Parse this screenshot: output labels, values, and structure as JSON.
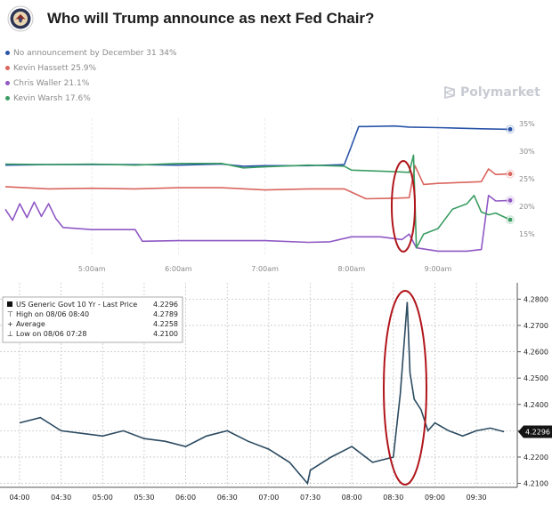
{
  "header": {
    "title": "Who will Trump announce as next Fed Chair?",
    "brand": "Polymarket"
  },
  "colors": {
    "none": "#2a54a8",
    "hassett": "#d9655e",
    "waller": "#8f58c4",
    "warsh": "#3a9d62",
    "bond_line": "#2b4a60",
    "annotation": "#b0151b"
  },
  "chart_data": [
    {
      "type": "line",
      "title": "Who will Trump announce as next Fed Chair?",
      "x_ticks": [
        "5:00am",
        "6:00am",
        "7:00am",
        "8:00am",
        "9:00am"
      ],
      "y_ticks": [
        "35%",
        "30%",
        "25%",
        "20%",
        "15%"
      ],
      "ylim": [
        11,
        36
      ],
      "grid": "vertical",
      "legend_position": "top-left",
      "series": [
        {
          "name": "No announcement by December 31",
          "label": "No announcement by December 31 34%",
          "color": "#2a54a8",
          "end_label": "",
          "x": [
            "04:00",
            "04:30",
            "05:00",
            "05:30",
            "06:00",
            "06:30",
            "06:45",
            "07:00",
            "07:30",
            "07:55",
            "08:00",
            "08:05",
            "08:10",
            "08:30",
            "08:40",
            "09:00",
            "09:30",
            "09:50"
          ],
          "y": [
            27.5,
            27.6,
            27.6,
            27.6,
            27.5,
            27.7,
            27.3,
            27.4,
            27.4,
            27.6,
            31.0,
            34.5,
            34.5,
            34.6,
            34.4,
            34.3,
            34.1,
            34.0
          ]
        },
        {
          "name": "Kevin Hassett",
          "label": "Kevin Hassett 25.9%",
          "color": "#d9655e",
          "x": [
            "04:00",
            "04:30",
            "05:00",
            "05:30",
            "06:00",
            "06:30",
            "07:00",
            "07:30",
            "07:55",
            "08:10",
            "08:30",
            "08:40",
            "08:44",
            "08:50",
            "09:00",
            "09:30",
            "09:35",
            "09:40",
            "09:50"
          ],
          "y": [
            23.6,
            23.2,
            23.3,
            23.2,
            23.4,
            23.4,
            23.0,
            23.2,
            23.2,
            21.4,
            21.5,
            21.6,
            27.4,
            24.0,
            24.2,
            24.5,
            26.8,
            25.8,
            25.9
          ]
        },
        {
          "name": "Chris Waller",
          "label": "Chris Waller 21.1%",
          "color": "#8f58c4",
          "x": [
            "04:00",
            "04:05",
            "04:10",
            "04:15",
            "04:20",
            "04:25",
            "04:30",
            "04:35",
            "04:40",
            "05:00",
            "05:30",
            "05:35",
            "06:00",
            "06:30",
            "07:00",
            "07:30",
            "07:45",
            "08:00",
            "08:20",
            "08:35",
            "08:40",
            "08:45",
            "09:00",
            "09:20",
            "09:30",
            "09:35",
            "09:40",
            "09:50"
          ],
          "y": [
            19.5,
            17.5,
            20.5,
            18.0,
            20.8,
            18.2,
            20.5,
            17.8,
            16.2,
            15.8,
            15.8,
            13.7,
            13.8,
            13.8,
            13.8,
            13.5,
            13.6,
            14.5,
            14.5,
            14.0,
            15.0,
            12.5,
            11.9,
            11.9,
            12.2,
            22.0,
            21.0,
            21.1
          ]
        },
        {
          "name": "Kevin Warsh",
          "label": "Kevin Warsh 17.6%",
          "color": "#3a9d62",
          "x": [
            "04:00",
            "04:30",
            "05:00",
            "05:30",
            "06:00",
            "06:30",
            "06:45",
            "07:00",
            "07:30",
            "07:55",
            "08:00",
            "08:30",
            "08:40",
            "08:43",
            "08:45",
            "08:50",
            "09:00",
            "09:10",
            "09:20",
            "09:25",
            "09:30",
            "09:35",
            "09:40",
            "09:50"
          ],
          "y": [
            27.7,
            27.6,
            27.7,
            27.5,
            27.8,
            27.8,
            27.0,
            27.2,
            27.5,
            27.3,
            26.6,
            26.3,
            26.2,
            29.3,
            12.5,
            15.0,
            16.0,
            19.5,
            20.5,
            22.0,
            19.0,
            18.5,
            18.8,
            17.6
          ]
        }
      ]
    },
    {
      "type": "line",
      "title": "US Generic Govt 10 Yr - Last Price",
      "x_ticks": [
        "04:00",
        "04:30",
        "05:00",
        "05:30",
        "06:00",
        "06:30",
        "07:00",
        "07:30",
        "08:00",
        "08:30",
        "09:00",
        "09:30"
      ],
      "y_ticks": [
        "4.2800",
        "4.2700",
        "4.2600",
        "4.2500",
        "4.2400",
        "4.2300",
        "4.2200",
        "4.2100"
      ],
      "ylim": [
        4.2085,
        4.2835
      ],
      "grid": "both",
      "legend_position": "top-left",
      "legend": [
        {
          "label": "US Generic Govt 10 Yr - Last Price",
          "value": "4.2296"
        },
        {
          "label": "High on 08/06 08:40",
          "value": "4.2789"
        },
        {
          "label": "Average",
          "value": "4.2258"
        },
        {
          "label": "Low on 08/06 07:28",
          "value": "4.2100"
        }
      ],
      "last_price_label": "4.2296",
      "series": [
        {
          "name": "US Generic Govt 10 Yr",
          "x": [
            "04:00",
            "04:15",
            "04:30",
            "04:45",
            "05:00",
            "05:15",
            "05:30",
            "05:45",
            "06:00",
            "06:15",
            "06:30",
            "06:45",
            "07:00",
            "07:15",
            "07:28",
            "07:30",
            "07:45",
            "08:00",
            "08:15",
            "08:30",
            "08:35",
            "08:40",
            "08:42",
            "08:45",
            "08:50",
            "08:55",
            "09:00",
            "09:10",
            "09:20",
            "09:30",
            "09:40",
            "09:50"
          ],
          "y": [
            4.233,
            4.235,
            4.23,
            4.229,
            4.228,
            4.23,
            4.227,
            4.226,
            4.224,
            4.228,
            4.23,
            4.226,
            4.223,
            4.218,
            4.21,
            4.215,
            4.22,
            4.224,
            4.218,
            4.22,
            4.244,
            4.2789,
            4.252,
            4.242,
            4.238,
            4.23,
            4.233,
            4.23,
            4.228,
            4.23,
            4.231,
            4.2296
          ]
        }
      ]
    }
  ]
}
